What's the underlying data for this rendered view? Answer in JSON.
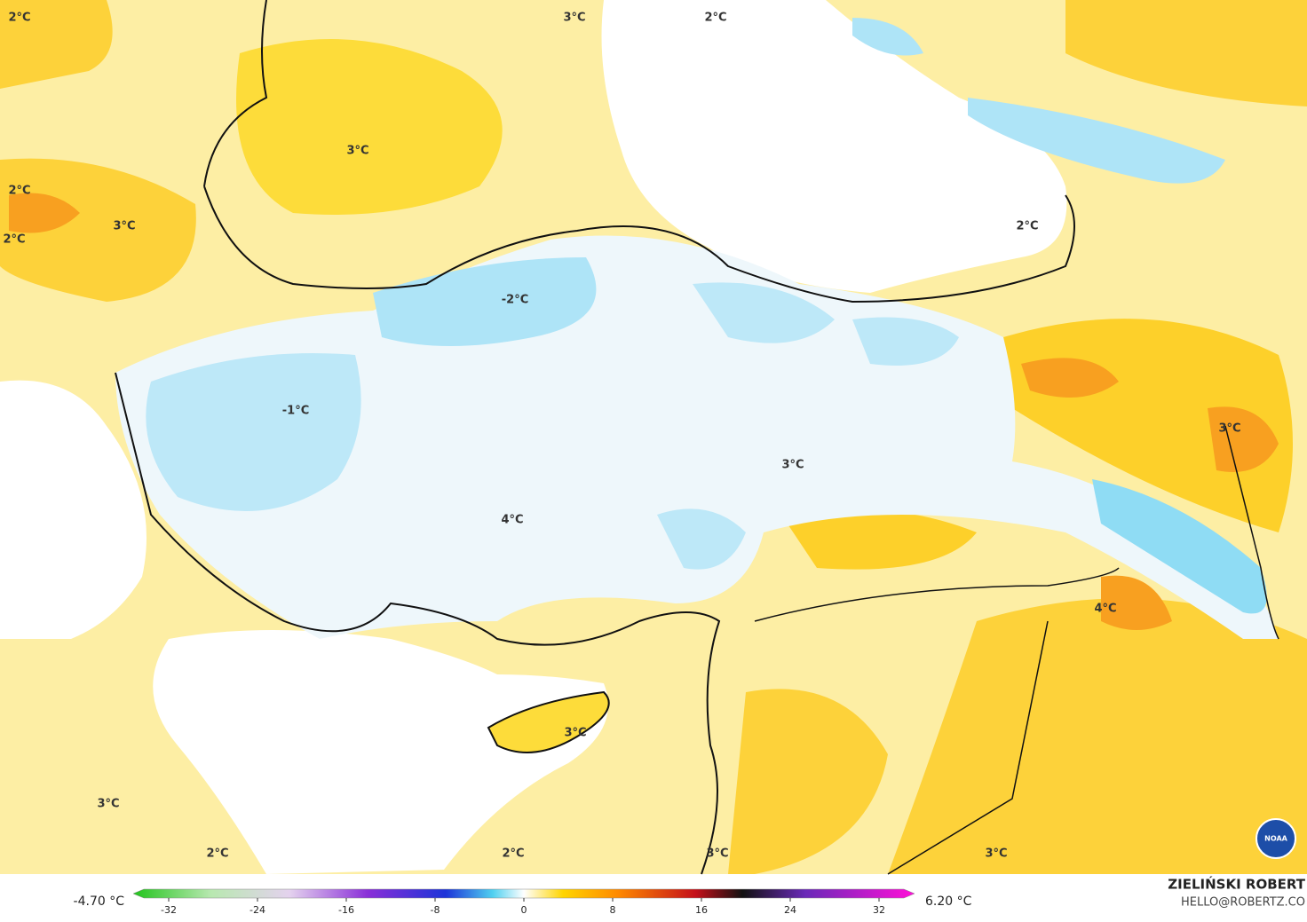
{
  "map": {
    "labels": [
      "2°C",
      "3°C",
      "2°C",
      "3°C",
      "2°C",
      "3°C",
      "2°C",
      "2°C",
      "-2°C",
      "-1°C",
      "3°C",
      "3°C",
      "4°C",
      "4°C",
      "3°C",
      "3°C",
      "2°C",
      "2°C",
      "3°C",
      "3°C"
    ]
  },
  "colorbar": {
    "min_label": "-4.70 °C",
    "max_label": "6.20 °C",
    "ticks": [
      -32,
      -24,
      -16,
      -8,
      0,
      8,
      16,
      24,
      32
    ]
  },
  "credit": {
    "name": "ZIELIŃSKI ROBERT",
    "contact": "HELLO@ROBERTZ.CO",
    "logo": "NOAA"
  }
}
